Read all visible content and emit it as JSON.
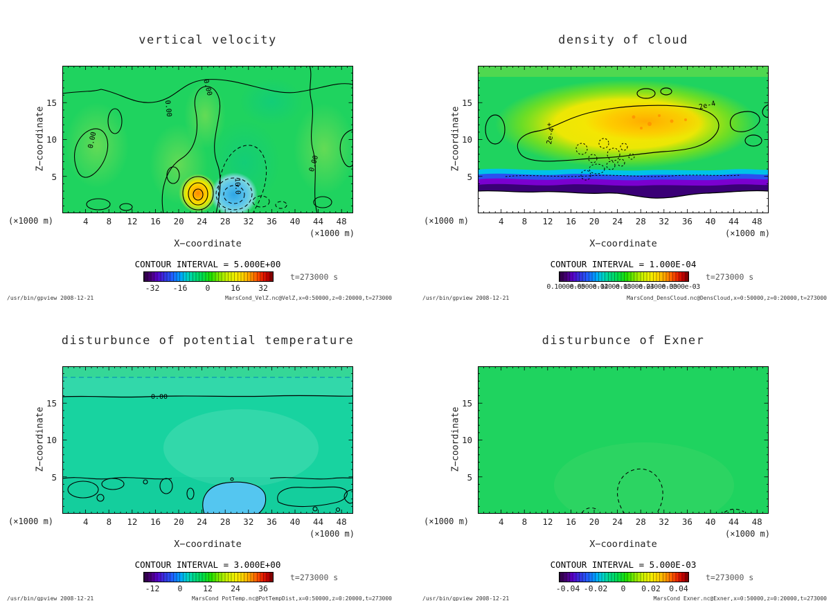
{
  "chart_data": [
    {
      "type": "contour",
      "title": "vertical velocity",
      "xlabel": "X-coordinate",
      "ylabel": "Z-coordinate",
      "axis_units": "x1000 m",
      "xlim": [
        0,
        50
      ],
      "ylim": [
        0,
        20
      ],
      "xticks": [
        4,
        8,
        12,
        16,
        20,
        24,
        28,
        32,
        36,
        40,
        44,
        48
      ],
      "yticks": [
        5,
        10,
        15
      ],
      "contour_interval": 5.0,
      "time": "t=273000 s",
      "colorbar_ticks": [
        -32,
        -16,
        0,
        16,
        32
      ],
      "palette": "rainbow",
      "features": [
        {
          "label": "background field near 0 (green) over most of the domain"
        },
        {
          "label": "updraft maximum ~ +30 (orange/yellow closed contours)",
          "x": 23.5,
          "z": 3
        },
        {
          "label": "downdraft minimum ~ -15 (cyan region, dashed contours, label 10.0)",
          "x": 29.5,
          "z": 3
        },
        {
          "label": "meandering 0.00 contours across domain and near z=17-18"
        }
      ],
      "source": "MarsCond_VelZ.nc@VelZ,x=0:50000,z=0:20000,t=273000"
    },
    {
      "type": "contour",
      "title": "density of cloud",
      "xlabel": "X-coordinate",
      "ylabel": "Z-coordinate",
      "axis_units": "x1000 m",
      "xlim": [
        0,
        50
      ],
      "ylim": [
        0,
        20
      ],
      "xticks": [
        4,
        8,
        12,
        16,
        20,
        24,
        28,
        32,
        36,
        40,
        44,
        48
      ],
      "yticks": [
        5,
        10,
        15
      ],
      "contour_interval": 0.0001,
      "time": "t=273000 s",
      "colorbar_ticks": [
        "0.1000e-05",
        "0.6000e-04",
        "0.1200e-03",
        "0.1800e-03",
        "0.2400e-03",
        "0.3000e-03"
      ],
      "palette": "rainbow",
      "features": [
        {
          "label": "cloud deck maximum ~2.4e-4 to 3e-4 (yellow/orange)",
          "x": "12-40",
          "z": "8-14"
        },
        {
          "label": "contour labeled 2e-4 encloses the main cloud deck"
        },
        {
          "label": "thin low-density band (cyan/blue/purple) at z=4-6"
        },
        {
          "label": "zero density (white) below z=4"
        },
        {
          "label": "speckled dashed contours cluster",
          "x": "15-28",
          "z": "5-10"
        }
      ],
      "source": "MarsCond_DensCloud.nc@DensCloud,x=0:50000,z=0:20000,t=273000"
    },
    {
      "type": "contour",
      "title": "disturbunce of potential temperature",
      "xlabel": "X-coordinate",
      "ylabel": "Z-coordinate",
      "axis_units": "x1000 m",
      "xlim": [
        0,
        50
      ],
      "ylim": [
        0,
        20
      ],
      "xticks": [
        4,
        8,
        12,
        16,
        20,
        24,
        28,
        32,
        36,
        40,
        44,
        48
      ],
      "yticks": [
        5,
        10,
        15
      ],
      "contour_interval": 3.0,
      "time": "t=273000 s",
      "colorbar_ticks": [
        -12,
        0,
        12,
        24,
        36
      ],
      "palette": "rainbow",
      "features": [
        {
          "label": "near-uniform slightly negative field (cyan-teal) over most of the domain"
        },
        {
          "label": "0.00 contour at z=16, dashed contour near z=18.5"
        },
        {
          "label": "surface-layer anomalies with closed contours below z=5"
        },
        {
          "label": "cold pocket (light blue ~ -6)",
          "x": "24-34",
          "z": "0-4"
        }
      ],
      "source": "MarsCond_PotTemp.nc@PotTempDist,x=0:50000,z=0:20000,t=273000"
    },
    {
      "type": "contour",
      "title": "disturbunce of Exner",
      "xlabel": "X-coordinate",
      "ylabel": "Z-coordinate",
      "axis_units": "x1000 m",
      "xlim": [
        0,
        50
      ],
      "ylim": [
        0,
        20
      ],
      "xticks": [
        4,
        8,
        12,
        16,
        20,
        24,
        28,
        32,
        36,
        40,
        44,
        48
      ],
      "yticks": [
        5,
        10,
        15
      ],
      "contour_interval": 0.005,
      "time": "t=273000 s",
      "colorbar_ticks": [
        -0.04,
        -0.02,
        0,
        0.02,
        0.04
      ],
      "palette": "rainbow",
      "features": [
        {
          "label": "near-uniform field ~0 (green) over the entire domain"
        },
        {
          "label": "single weak dashed contour cell",
          "x": 28,
          "z": "0-5"
        },
        {
          "label": "small dashed fragments near bottom left and bottom right"
        }
      ],
      "source": "MarsCond_Exner.nc@Exner,x=0:50000,z=0:20000,t=273000"
    }
  ],
  "panels": [
    {
      "title": "vertical velocity",
      "xlabel": "X−coordinate",
      "ylabel": "Z−coordinate",
      "x_unit": "(×1000 m)",
      "x_unit_right": "(×1000 m)",
      "xticks": [
        "4",
        "8",
        "12",
        "16",
        "20",
        "24",
        "28",
        "32",
        "36",
        "40",
        "44",
        "48"
      ],
      "yticks": [
        "15",
        "10",
        "5"
      ],
      "contour_interval": "CONTOUR INTERVAL = 5.000E+00",
      "time_label": "t=273000 s",
      "colorbar_ticks": [
        "-32",
        "-16",
        "0",
        "16",
        "32"
      ],
      "contour_labels": [
        {
          "text": "0.00"
        },
        {
          "text": "0.00"
        },
        {
          "text": "0.00"
        },
        {
          "text": "0.00"
        },
        {
          "text": "10.0"
        }
      ],
      "footer_left": "/usr/bin/gpview  2008-12-21",
      "footer_right": "MarsCond_VelZ.nc@VelZ,x=0:50000,z=0:20000,t=273000"
    },
    {
      "title": "density of cloud",
      "xlabel": "X−coordinate",
      "ylabel": "Z−coordinate",
      "x_unit": "(×1000 m)",
      "x_unit_right": "(×1000 m)",
      "xticks": [
        "4",
        "8",
        "12",
        "16",
        "20",
        "24",
        "28",
        "32",
        "36",
        "40",
        "44",
        "48"
      ],
      "yticks": [
        "15",
        "10",
        "5"
      ],
      "contour_interval": "CONTOUR INTERVAL = 1.000E-04",
      "time_label": "t=273000 s",
      "colorbar_ticks": [
        "0.1000e-05",
        "0.6000e-04",
        "0.1200e-03",
        "0.1800e-03",
        "0.2400e-03",
        "0.3000e-03"
      ],
      "contour_labels": [
        {
          "text": "2e-4"
        },
        {
          "text": "2e-4"
        },
        {
          "text": "+"
        }
      ],
      "footer_left": "/usr/bin/gpview  2008-12-21",
      "footer_right": "MarsCond_DensCloud.nc@DensCloud,x=0:50000,z=0:20000,t=273000"
    },
    {
      "title": "disturbunce of potential temperature",
      "xlabel": "X−coordinate",
      "ylabel": "Z−coordinate",
      "x_unit": "(×1000 m)",
      "x_unit_right": "(×1000 m)",
      "xticks": [
        "4",
        "8",
        "12",
        "16",
        "20",
        "24",
        "28",
        "32",
        "36",
        "40",
        "44",
        "48"
      ],
      "yticks": [
        "15",
        "10",
        "5"
      ],
      "contour_interval": "CONTOUR INTERVAL = 3.000E+00",
      "time_label": "t=273000 s",
      "colorbar_ticks": [
        "-12",
        "0",
        "12",
        "24",
        "36"
      ],
      "contour_labels": [
        {
          "text": "0.00"
        }
      ],
      "footer_left": "/usr/bin/gpview  2008-12-21",
      "footer_right": "MarsCond_PotTemp.nc@PotTempDist,x=0:50000,z=0:20000,t=273000"
    },
    {
      "title": "disturbunce of Exner",
      "xlabel": "X−coordinate",
      "ylabel": "Z−coordinate",
      "x_unit": "(×1000 m)",
      "x_unit_right": "(×1000 m)",
      "xticks": [
        "4",
        "8",
        "12",
        "16",
        "20",
        "24",
        "28",
        "32",
        "36",
        "40",
        "44",
        "48"
      ],
      "yticks": [
        "15",
        "10",
        "5"
      ],
      "contour_interval": "CONTOUR INTERVAL = 5.000E-03",
      "time_label": "t=273000 s",
      "colorbar_ticks": [
        "-0.04",
        "-0.02",
        "0",
        "0.02",
        "0.04"
      ],
      "contour_labels": [],
      "footer_left": "/usr/bin/gpview  2008-12-21",
      "footer_right": "MarsCond_Exner.nc@Exner,x=0:50000,z=0:20000,t=273000"
    }
  ]
}
